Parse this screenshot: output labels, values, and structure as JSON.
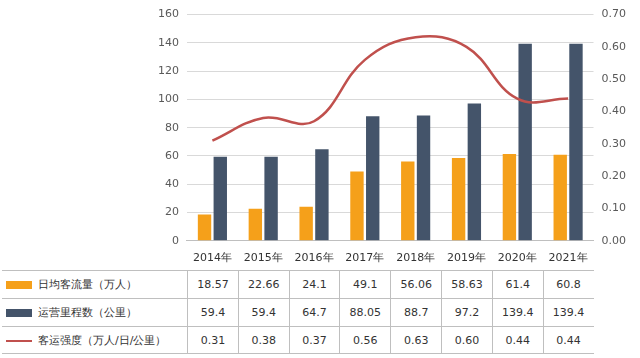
{
  "chart_data": {
    "type": "bar",
    "categories": [
      "2014年",
      "2015年",
      "2016年",
      "2017年",
      "2018年",
      "2019年",
      "2020年",
      "2021年"
    ],
    "series": [
      {
        "name": "日均客流量（万人）",
        "type": "bar",
        "color": "#f5a01a",
        "values": [
          18.57,
          22.66,
          24.1,
          49.1,
          56.06,
          58.63,
          61.4,
          60.8
        ]
      },
      {
        "name": "运营里程数（公里）",
        "type": "bar",
        "color": "#44546a",
        "values": [
          59.4,
          59.4,
          64.7,
          88.05,
          88.7,
          97.2,
          139.4,
          139.4
        ]
      },
      {
        "name": "客运强度（万人/日/公里）",
        "type": "line",
        "axis": "y2",
        "color": "#c0504d",
        "line_style": "smooth",
        "marker": "none",
        "values": [
          0.31,
          0.38,
          0.37,
          0.56,
          0.63,
          0.6,
          0.44,
          0.44
        ],
        "value_labels": [
          "0.31",
          "0.38",
          "0.37",
          "0.56",
          "0.63",
          "0.60",
          "0.44",
          "0.44"
        ]
      }
    ],
    "ylim": [
      0,
      160
    ],
    "yticks": [
      0,
      20,
      40,
      60,
      80,
      100,
      120,
      140,
      160
    ],
    "y2lim": [
      0,
      0.7
    ],
    "y2ticks": [
      {
        "value": 0,
        "label": "0.00"
      },
      {
        "value": 0.1,
        "label": "0.10"
      },
      {
        "value": 0.2,
        "label": "0.20"
      },
      {
        "value": 0.3,
        "label": "0.30"
      },
      {
        "value": 0.4,
        "label": "0.40"
      },
      {
        "value": 0.5,
        "label": "0.50"
      },
      {
        "value": 0.6,
        "label": "0.60"
      },
      {
        "value": 0.7,
        "label": "0.70"
      }
    ],
    "grid": true,
    "legend": "bottom",
    "data_labels": true
  }
}
